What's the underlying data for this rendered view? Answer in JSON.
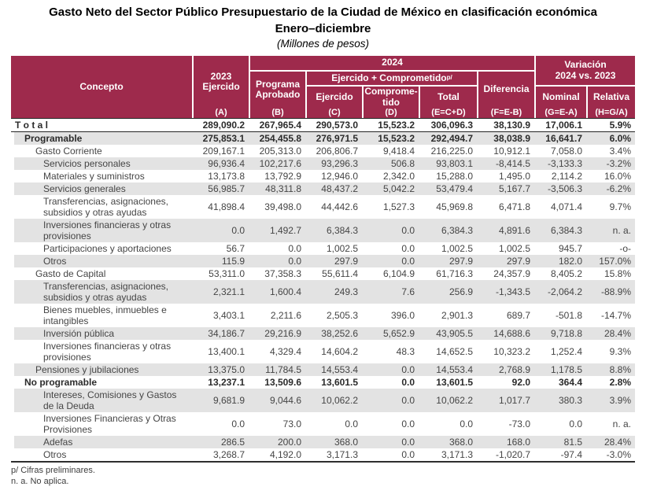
{
  "title": {
    "line1": "Gasto Neto del Sector Público Presupuestario de la Ciudad de México en clasificación económica",
    "line2": "Enero–diciembre",
    "line3": "(Millones de pesos)"
  },
  "colors": {
    "header_bg": "#9e2a4c",
    "row_shade": "#e3e3e3",
    "body_text": "#454545"
  },
  "table": {
    "header": {
      "concepto": "Concepto",
      "col_a_label": "2023\nEjercido",
      "col_a_letter": "(A)",
      "group_2024": "2024",
      "col_b_label": "Programa\nAprobado",
      "col_b_letter": "(B)",
      "group_ejercido_comprometido": "Ejercido + Comprometido ",
      "group_ejercido_comprometido_sup": "p/",
      "col_c_label": "Ejercido",
      "col_c_letter": "(C)",
      "col_d_label": "Comprome-\ntido",
      "col_d_letter": "(D)",
      "col_e_label": "Total",
      "col_e_letter": "(E=C+D)",
      "col_f_label": "Diferencia",
      "col_f_letter": "(F=E-B)",
      "group_variacion": "Variación\n2024 vs. 2023",
      "col_g_label": "Nominal",
      "col_g_letter": "(G=E-A)",
      "col_h_label": "Relativa",
      "col_h_letter": "(H=G/A)"
    },
    "rows": [
      {
        "concepto": "T o t a l",
        "level": 0,
        "bold": true,
        "shaded": false,
        "rule": true,
        "values": [
          "289,090.2",
          "267,965.4",
          "290,573.0",
          "15,523.2",
          "306,096.3",
          "38,130.9",
          "17,006.1",
          "5.9%"
        ]
      },
      {
        "concepto": "Programable",
        "level": 1,
        "bold": true,
        "shaded": true,
        "rule": false,
        "values": [
          "275,853.1",
          "254,455.8",
          "276,971.5",
          "15,523.2",
          "292,494.7",
          "38,038.9",
          "16,641.7",
          "6.0%"
        ]
      },
      {
        "concepto": "Gasto Corriente",
        "level": 2,
        "bold": false,
        "shaded": false,
        "rule": false,
        "values": [
          "209,167.1",
          "205,313.0",
          "206,806.7",
          "9,418.4",
          "216,225.0",
          "10,912.1",
          "7,058.0",
          "3.4%"
        ]
      },
      {
        "concepto": "Servicios personales",
        "level": 3,
        "bold": false,
        "shaded": true,
        "rule": false,
        "values": [
          "96,936.4",
          "102,217.6",
          "93,296.3",
          "506.8",
          "93,803.1",
          "-8,414.5",
          "-3,133.3",
          "-3.2%"
        ]
      },
      {
        "concepto": "Materiales y suministros",
        "level": 3,
        "bold": false,
        "shaded": false,
        "rule": false,
        "values": [
          "13,173.8",
          "13,792.9",
          "12,946.0",
          "2,342.0",
          "15,288.0",
          "1,495.0",
          "2,114.2",
          "16.0%"
        ]
      },
      {
        "concepto": "Servicios generales",
        "level": 3,
        "bold": false,
        "shaded": true,
        "rule": false,
        "values": [
          "56,985.7",
          "48,311.8",
          "48,437.2",
          "5,042.2",
          "53,479.4",
          "5,167.7",
          "-3,506.3",
          "-6.2%"
        ]
      },
      {
        "concepto": "Transferencias, asignaciones,\nsubsidios y otras ayudas",
        "level": 3,
        "bold": false,
        "shaded": false,
        "rule": false,
        "values": [
          "41,898.4",
          "39,498.0",
          "44,442.6",
          "1,527.3",
          "45,969.8",
          "6,471.8",
          "4,071.4",
          "9.7%"
        ]
      },
      {
        "concepto": "Inversiones financieras y otras\nprovisiones",
        "level": 3,
        "bold": false,
        "shaded": true,
        "rule": false,
        "values": [
          "0.0",
          "1,492.7",
          "6,384.3",
          "0.0",
          "6,384.3",
          "4,891.6",
          "6,384.3",
          "n. a."
        ]
      },
      {
        "concepto": "Participaciones y aportaciones",
        "level": 3,
        "bold": false,
        "shaded": false,
        "rule": false,
        "values": [
          "56.7",
          "0.0",
          "1,002.5",
          "0.0",
          "1,002.5",
          "1,002.5",
          "945.7",
          "-o-"
        ]
      },
      {
        "concepto": "Otros",
        "level": 3,
        "bold": false,
        "shaded": true,
        "rule": false,
        "values": [
          "115.9",
          "0.0",
          "297.9",
          "0.0",
          "297.9",
          "297.9",
          "182.0",
          "157.0%"
        ]
      },
      {
        "concepto": "Gasto de Capital",
        "level": 2,
        "bold": false,
        "shaded": false,
        "rule": false,
        "values": [
          "53,311.0",
          "37,358.3",
          "55,611.4",
          "6,104.9",
          "61,716.3",
          "24,357.9",
          "8,405.2",
          "15.8%"
        ]
      },
      {
        "concepto": "Transferencias, asignaciones,\nsubsidios y otras ayudas",
        "level": 3,
        "bold": false,
        "shaded": true,
        "rule": false,
        "values": [
          "2,321.1",
          "1,600.4",
          "249.3",
          "7.6",
          "256.9",
          "-1,343.5",
          "-2,064.2",
          "-88.9%"
        ]
      },
      {
        "concepto": "Bienes muebles, inmuebles e\nintangibles",
        "level": 3,
        "bold": false,
        "shaded": false,
        "rule": false,
        "values": [
          "3,403.1",
          "2,211.6",
          "2,505.3",
          "396.0",
          "2,901.3",
          "689.7",
          "-501.8",
          "-14.7%"
        ]
      },
      {
        "concepto": "Inversión pública",
        "level": 3,
        "bold": false,
        "shaded": true,
        "rule": false,
        "values": [
          "34,186.7",
          "29,216.9",
          "38,252.6",
          "5,652.9",
          "43,905.5",
          "14,688.6",
          "9,718.8",
          "28.4%"
        ]
      },
      {
        "concepto": "Inversiones financieras y otras\nprovisiones",
        "level": 3,
        "bold": false,
        "shaded": false,
        "rule": false,
        "values": [
          "13,400.1",
          "4,329.4",
          "14,604.2",
          "48.3",
          "14,652.5",
          "10,323.2",
          "1,252.4",
          "9.3%"
        ]
      },
      {
        "concepto": "Pensiones y jubilaciones",
        "level": 2,
        "bold": false,
        "shaded": true,
        "rule": false,
        "values": [
          "13,375.0",
          "11,784.5",
          "14,553.4",
          "0.0",
          "14,553.4",
          "2,768.9",
          "1,178.5",
          "8.8%"
        ]
      },
      {
        "concepto": "No programable",
        "level": 1,
        "bold": true,
        "shaded": false,
        "rule": false,
        "values": [
          "13,237.1",
          "13,509.6",
          "13,601.5",
          "0.0",
          "13,601.5",
          "92.0",
          "364.4",
          "2.8%"
        ]
      },
      {
        "concepto": "Intereses, Comisiones y Gastos\nde la Deuda",
        "level": 3,
        "bold": false,
        "shaded": true,
        "rule": false,
        "values": [
          "9,681.9",
          "9,044.6",
          "10,062.2",
          "0.0",
          "10,062.2",
          "1,017.7",
          "380.3",
          "3.9%"
        ]
      },
      {
        "concepto": "Inversiones Financieras y Otras\nProvisiones",
        "level": 3,
        "bold": false,
        "shaded": false,
        "rule": false,
        "values": [
          "0.0",
          "73.0",
          "0.0",
          "0.0",
          "0.0",
          "-73.0",
          "0.0",
          "n. a."
        ]
      },
      {
        "concepto": "Adefas",
        "level": 3,
        "bold": false,
        "shaded": true,
        "rule": false,
        "values": [
          "286.5",
          "200.0",
          "368.0",
          "0.0",
          "368.0",
          "168.0",
          "81.5",
          "28.4%"
        ]
      },
      {
        "concepto": "Otros",
        "level": 3,
        "bold": false,
        "shaded": false,
        "rule": false,
        "values": [
          "3,268.7",
          "4,192.0",
          "3,171.3",
          "0.0",
          "3,171.3",
          "-1,020.7",
          "-97.4",
          "-3.0%"
        ]
      }
    ]
  },
  "footnotes": {
    "note1": "p/ Cifras preliminares.",
    "note2": "n. a. No aplica."
  }
}
